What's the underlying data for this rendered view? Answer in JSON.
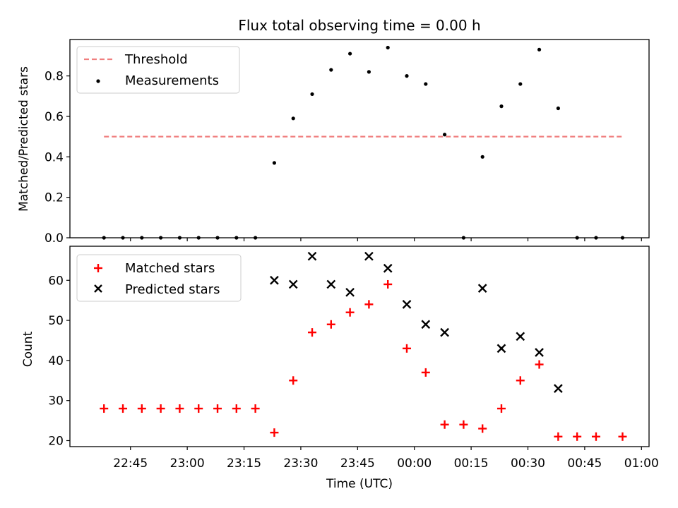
{
  "chart_data": [
    {
      "type": "scatter",
      "title": "Flux total observing time = 0.00 h",
      "xlabel": "",
      "ylabel": "Matched/Predicted stars",
      "ylim": [
        0,
        0.98
      ],
      "y_ticks": [
        "0.0",
        "0.2",
        "0.4",
        "0.6",
        "0.8"
      ],
      "y_tick_values": [
        0,
        0.2,
        0.4,
        0.6,
        0.8
      ],
      "legend": {
        "location": "upper left",
        "entries": [
          "Threshold",
          "Measurements"
        ]
      },
      "threshold": {
        "name": "Threshold",
        "x_start": "22:38",
        "x_end": "00:55",
        "y": 0.5,
        "color": "#f07f7f"
      },
      "measurements": {
        "name": "Measurements",
        "color": "#000000",
        "x": [
          "22:38",
          "22:43",
          "22:48",
          "22:53",
          "22:58",
          "23:03",
          "23:08",
          "23:13",
          "23:18",
          "23:23",
          "23:28",
          "23:33",
          "23:38",
          "23:43",
          "23:48",
          "23:53",
          "23:58",
          "00:03",
          "00:08",
          "00:13",
          "00:18",
          "00:23",
          "00:28",
          "00:33",
          "00:38",
          "00:43",
          "00:48",
          "00:55"
        ],
        "y": [
          0,
          0,
          0,
          0,
          0,
          0,
          0,
          0,
          0,
          0.37,
          0.59,
          0.71,
          0.83,
          0.91,
          0.82,
          0.94,
          0.8,
          0.76,
          0.51,
          0,
          0.4,
          0.65,
          0.76,
          0.93,
          0.64,
          0,
          0,
          0
        ]
      }
    },
    {
      "type": "scatter",
      "title": "",
      "xlabel": "Time (UTC)",
      "ylabel": "Count",
      "ylim": [
        18.5,
        68.5
      ],
      "y_ticks": [
        "20",
        "30",
        "40",
        "50",
        "60"
      ],
      "y_tick_values": [
        20,
        30,
        40,
        50,
        60
      ],
      "x_ticks": [
        "22:45",
        "23:00",
        "23:15",
        "23:30",
        "23:45",
        "00:00",
        "00:15",
        "00:30",
        "00:45",
        "01:00"
      ],
      "legend": {
        "location": "upper left",
        "entries": [
          "Matched stars",
          "Predicted stars"
        ]
      },
      "series": [
        {
          "name": "Matched stars",
          "marker": "plus",
          "color": "#ff0000",
          "x": [
            "22:38",
            "22:43",
            "22:48",
            "22:53",
            "22:58",
            "23:03",
            "23:08",
            "23:13",
            "23:18",
            "23:23",
            "23:28",
            "23:33",
            "23:38",
            "23:43",
            "23:48",
            "23:53",
            "23:58",
            "00:03",
            "00:08",
            "00:13",
            "00:18",
            "00:23",
            "00:28",
            "00:33",
            "00:38",
            "00:43",
            "00:48",
            "00:55"
          ],
          "values": [
            28,
            28,
            28,
            28,
            28,
            28,
            28,
            28,
            28,
            22,
            35,
            47,
            49,
            52,
            54,
            59,
            43,
            37,
            24,
            24,
            23,
            28,
            35,
            39,
            21,
            21,
            21,
            21
          ]
        },
        {
          "name": "Predicted stars",
          "marker": "x",
          "color": "#000000",
          "x": [
            "23:23",
            "23:28",
            "23:33",
            "23:38",
            "23:43",
            "23:48",
            "23:53",
            "23:58",
            "00:03",
            "00:08",
            "00:18",
            "00:23",
            "00:28",
            "00:33",
            "00:38"
          ],
          "values": [
            60,
            59,
            66,
            59,
            57,
            66,
            63,
            54,
            49,
            47,
            58,
            43,
            46,
            42,
            33
          ]
        }
      ]
    }
  ]
}
